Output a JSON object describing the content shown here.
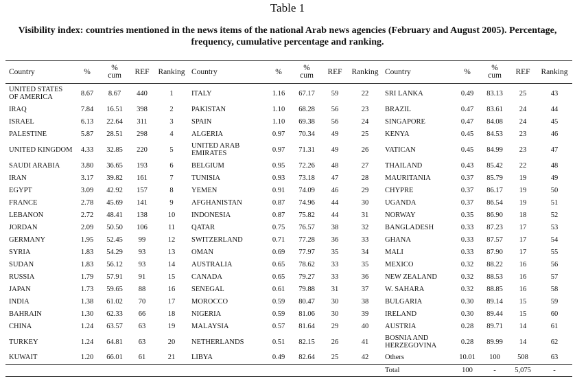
{
  "title": "Table 1",
  "caption": "Visibility index: countries mentioned in the news items of the national Arab news agencies (February and August 2005). Percentage, frequency, cumulative percentage and ranking.",
  "table": {
    "header": [
      "Country",
      "%",
      "% cum",
      "REF",
      "Ranking",
      "Country",
      "%",
      "% cum",
      "REF",
      "Ranking",
      "Country",
      "%",
      "% cum",
      "REF",
      "Ranking"
    ],
    "rows": [
      [
        "UNITED STATES OF AMERICA",
        "8.67",
        "8.67",
        "440",
        "1",
        "ITALY",
        "1.16",
        "67.17",
        "59",
        "22",
        "SRI LANKA",
        "0.49",
        "83.13",
        "25",
        "43"
      ],
      [
        "IRAQ",
        "7.84",
        "16.51",
        "398",
        "2",
        "PAKISTAN",
        "1.10",
        "68.28",
        "56",
        "23",
        "BRAZIL",
        "0.47",
        "83.61",
        "24",
        "44"
      ],
      [
        "ISRAEL",
        "6.13",
        "22.64",
        "311",
        "3",
        "SPAIN",
        "1.10",
        "69.38",
        "56",
        "24",
        "SINGAPORE",
        "0.47",
        "84.08",
        "24",
        "45"
      ],
      [
        "PALESTINE",
        "5.87",
        "28.51",
        "298",
        "4",
        "ALGERIA",
        "0.97",
        "70.34",
        "49",
        "25",
        "KENYA",
        "0.45",
        "84.53",
        "23",
        "46"
      ],
      [
        "UNITED KINGDOM",
        "4.33",
        "32.85",
        "220",
        "5",
        "UNITED ARAB EMIRATES",
        "0.97",
        "71.31",
        "49",
        "26",
        "VATICAN",
        "0.45",
        "84.99",
        "23",
        "47"
      ],
      [
        "SAUDI ARABIA",
        "3.80",
        "36.65",
        "193",
        "6",
        "BELGIUM",
        "0.95",
        "72.26",
        "48",
        "27",
        "THAILAND",
        "0.43",
        "85.42",
        "22",
        "48"
      ],
      [
        "IRAN",
        "3.17",
        "39.82",
        "161",
        "7",
        "TUNISIA",
        "0.93",
        "73.18",
        "47",
        "28",
        "MAURITANIA",
        "0.37",
        "85.79",
        "19",
        "49"
      ],
      [
        "EGYPT",
        "3.09",
        "42.92",
        "157",
        "8",
        "YEMEN",
        "0.91",
        "74.09",
        "46",
        "29",
        "CHYPRE",
        "0.37",
        "86.17",
        "19",
        "50"
      ],
      [
        "FRANCE",
        "2.78",
        "45.69",
        "141",
        "9",
        "AFGHANISTAN",
        "0.87",
        "74.96",
        "44",
        "30",
        "UGANDA",
        "0.37",
        "86.54",
        "19",
        "51"
      ],
      [
        "LEBANON",
        "2.72",
        "48.41",
        "138",
        "10",
        "INDONESIA",
        "0.87",
        "75.82",
        "44",
        "31",
        "NORWAY",
        "0.35",
        "86.90",
        "18",
        "52"
      ],
      [
        "JORDAN",
        "2.09",
        "50.50",
        "106",
        "11",
        "QATAR",
        "0.75",
        "76.57",
        "38",
        "32",
        "BANGLADESH",
        "0.33",
        "87.23",
        "17",
        "53"
      ],
      [
        "GERMANY",
        "1.95",
        "52.45",
        "99",
        "12",
        "SWITZERLAND",
        "0.71",
        "77.28",
        "36",
        "33",
        "GHANA",
        "0.33",
        "87.57",
        "17",
        "54"
      ],
      [
        "SYRIA",
        "1.83",
        "54.29",
        "93",
        "13",
        "OMAN",
        "0.69",
        "77.97",
        "35",
        "34",
        "MALI",
        "0.33",
        "87.90",
        "17",
        "55"
      ],
      [
        "SUDAN",
        "1.83",
        "56.12",
        "93",
        "14",
        "AUSTRALIA",
        "0.65",
        "78.62",
        "33",
        "35",
        "MEXICO",
        "0.32",
        "88.22",
        "16",
        "56"
      ],
      [
        "RUSSIA",
        "1.79",
        "57.91",
        "91",
        "15",
        "CANADA",
        "0.65",
        "79.27",
        "33",
        "36",
        "NEW ZEALAND",
        "0.32",
        "88.53",
        "16",
        "57"
      ],
      [
        "JAPAN",
        "1.73",
        "59.65",
        "88",
        "16",
        "SENEGAL",
        "0.61",
        "79.88",
        "31",
        "37",
        "W. SAHARA",
        "0.32",
        "88.85",
        "16",
        "58"
      ],
      [
        "INDIA",
        "1.38",
        "61.02",
        "70",
        "17",
        "MOROCCO",
        "0.59",
        "80.47",
        "30",
        "38",
        "BULGARIA",
        "0.30",
        "89.14",
        "15",
        "59"
      ],
      [
        "BAHRAIN",
        "1.30",
        "62.33",
        "66",
        "18",
        "NIGERIA",
        "0.59",
        "81.06",
        "30",
        "39",
        "IRELAND",
        "0.30",
        "89.44",
        "15",
        "60"
      ],
      [
        "CHINA",
        "1.24",
        "63.57",
        "63",
        "19",
        "MALAYSIA",
        "0.57",
        "81.64",
        "29",
        "40",
        "AUSTRIA",
        "0.28",
        "89.71",
        "14",
        "61"
      ],
      [
        "TURKEY",
        "1.24",
        "64.81",
        "63",
        "20",
        "NETHERLANDS",
        "0.51",
        "82.15",
        "26",
        "41",
        "BOSNIA AND HERZEGOVINA",
        "0.28",
        "89.99",
        "14",
        "62"
      ],
      [
        "KUWAIT",
        "1.20",
        "66.01",
        "61",
        "21",
        "LIBYA",
        "0.49",
        "82.64",
        "25",
        "42",
        "Others",
        "10.01",
        "100",
        "508",
        "63"
      ]
    ],
    "total": [
      "Total",
      "100",
      "-",
      "5,075",
      "-"
    ]
  }
}
